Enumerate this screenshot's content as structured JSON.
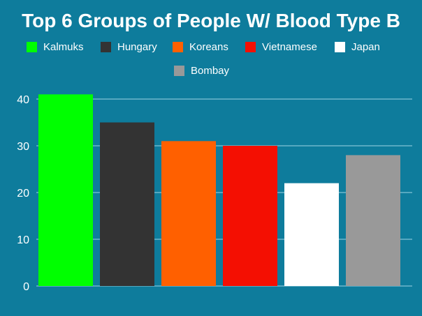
{
  "chart_data": {
    "type": "bar",
    "title": "Top 6 Groups of People W/ Blood Type B",
    "xlabel": "",
    "ylabel": "",
    "categories": [
      "Kalmuks",
      "Hungary",
      "Koreans",
      "Vietnamese",
      "Japan",
      "Bombay"
    ],
    "values": [
      41,
      35,
      31,
      30,
      22,
      28
    ],
    "colors": [
      "#00ff00",
      "#333333",
      "#ff6000",
      "#f40f02",
      "#ffffff",
      "#999999"
    ],
    "ylim": [
      0,
      40
    ],
    "yticks": [
      "0",
      "10",
      "20",
      "30",
      "40"
    ],
    "grid": true,
    "legend_position": "top"
  },
  "colors": {
    "background": "#0e7c9c",
    "gridline": "#9fd3e3",
    "text": "#ffffff"
  }
}
